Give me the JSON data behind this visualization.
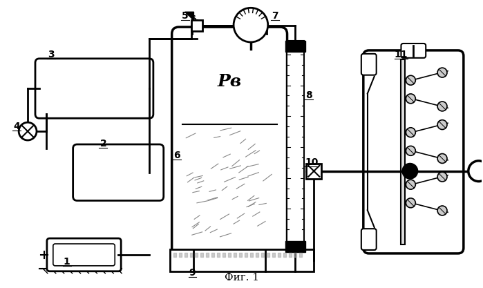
{
  "title": "Фиг. 1",
  "label_Pv": "Pв",
  "bg_color": "#ffffff",
  "line_color": "#000000",
  "figsize": [
    6.99,
    4.17
  ],
  "dpi": 100
}
